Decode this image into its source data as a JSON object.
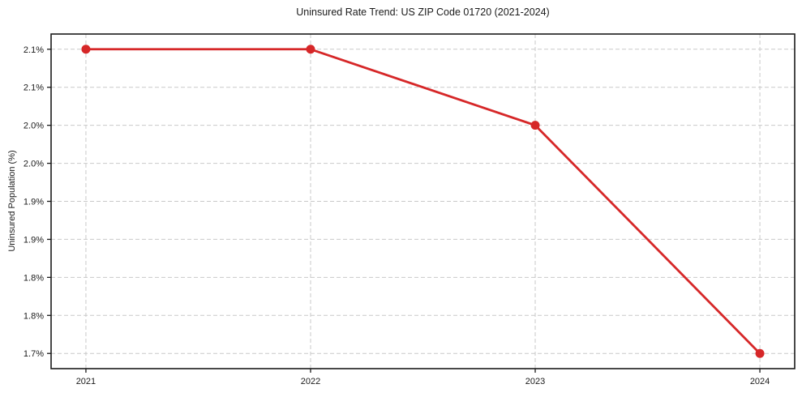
{
  "title": "Uninsured Rate Trend: US ZIP Code 01720 (2021-2024)",
  "chart_data": {
    "type": "line",
    "title": "Uninsured Rate Trend: US ZIP Code 01720 (2021-2024)",
    "xlabel": "",
    "ylabel": "Uninsured Population (%)",
    "x": [
      2021,
      2022,
      2023,
      2024
    ],
    "xtick_labels": [
      "2021",
      "2022",
      "2023",
      "2024"
    ],
    "series": [
      {
        "name": "Uninsured Population (%)",
        "values": [
          2.1,
          2.1,
          2.0,
          1.7
        ]
      }
    ],
    "yticks": [
      2.1,
      2.05,
      2.0,
      1.95,
      1.9,
      1.85,
      1.8,
      1.75,
      1.7
    ],
    "ytick_labels": [
      "2.1%",
      "2.1%",
      "2.0%",
      "2.0%",
      "1.9%",
      "1.9%",
      "1.8%",
      "1.8%",
      "1.7%"
    ],
    "xlim": [
      2020.845,
      2024.155
    ],
    "ylim": [
      1.68,
      2.12
    ],
    "grid": true,
    "legend": false,
    "colors": {
      "line": "#d62728",
      "marker": "#d62728",
      "grid": "#c9c9c9",
      "frame": "#1a1a1a",
      "tick": "#1a1a1a"
    }
  }
}
